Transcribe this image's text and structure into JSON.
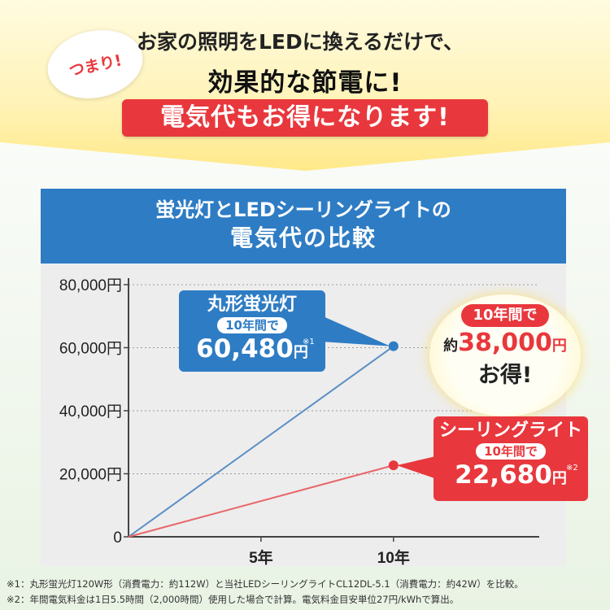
{
  "header": {
    "badge": "つまり!",
    "line1": "お家の照明をLEDに換えるだけで、",
    "line2": "効果的な節電に!",
    "line3": "電気代もお得になります!"
  },
  "panel": {
    "title1": "蛍光灯とLEDシーリングライトの",
    "title2": "電気代の比較"
  },
  "callouts": {
    "fluorescent": {
      "name": "丸形蛍光灯",
      "period": "10年間で",
      "value": "60,480",
      "yen": "円",
      "note": "※1"
    },
    "led": {
      "name": "シーリングライト",
      "period": "10年間で",
      "value": "22,680",
      "yen": "円",
      "note": "※2"
    }
  },
  "savings": {
    "period": "10年間で",
    "prefix": "約",
    "value": "38,000",
    "yen": "円",
    "suffix": "お得!"
  },
  "footnotes": [
    "※1：丸形蛍光灯120W形（消費電力：約112W）と当社LEDシーリングライトCL12DL-5.1（消費電力：約42W）を比較。",
    "※2：年間電気料金は1日5.5時間（2,000時間）使用した場合で計算。電気料金目安単位27円/kWhで算出。"
  ],
  "chart_data": {
    "type": "line",
    "x": [
      0,
      5,
      10
    ],
    "xticks": [
      "5年",
      "10年"
    ],
    "xtick_values": [
      5,
      10
    ],
    "yticks": [
      "0",
      "20,000円",
      "40,000円",
      "60,000円",
      "80,000円"
    ],
    "ytick_values": [
      0,
      20000,
      40000,
      60000,
      80000
    ],
    "ylim": [
      0,
      80000
    ],
    "xlim": [
      0,
      15.5
    ],
    "series": [
      {
        "name": "丸形蛍光灯",
        "x": [
          0,
          10
        ],
        "values": [
          0,
          60480
        ],
        "color": "#5b8ec6",
        "marker_color": "#2e7cc4"
      },
      {
        "name": "シーリングライト",
        "x": [
          0,
          10
        ],
        "values": [
          0,
          22680
        ],
        "color": "#e8666a",
        "marker_color": "#e8383d"
      }
    ],
    "grid": "dotted horizontal"
  }
}
